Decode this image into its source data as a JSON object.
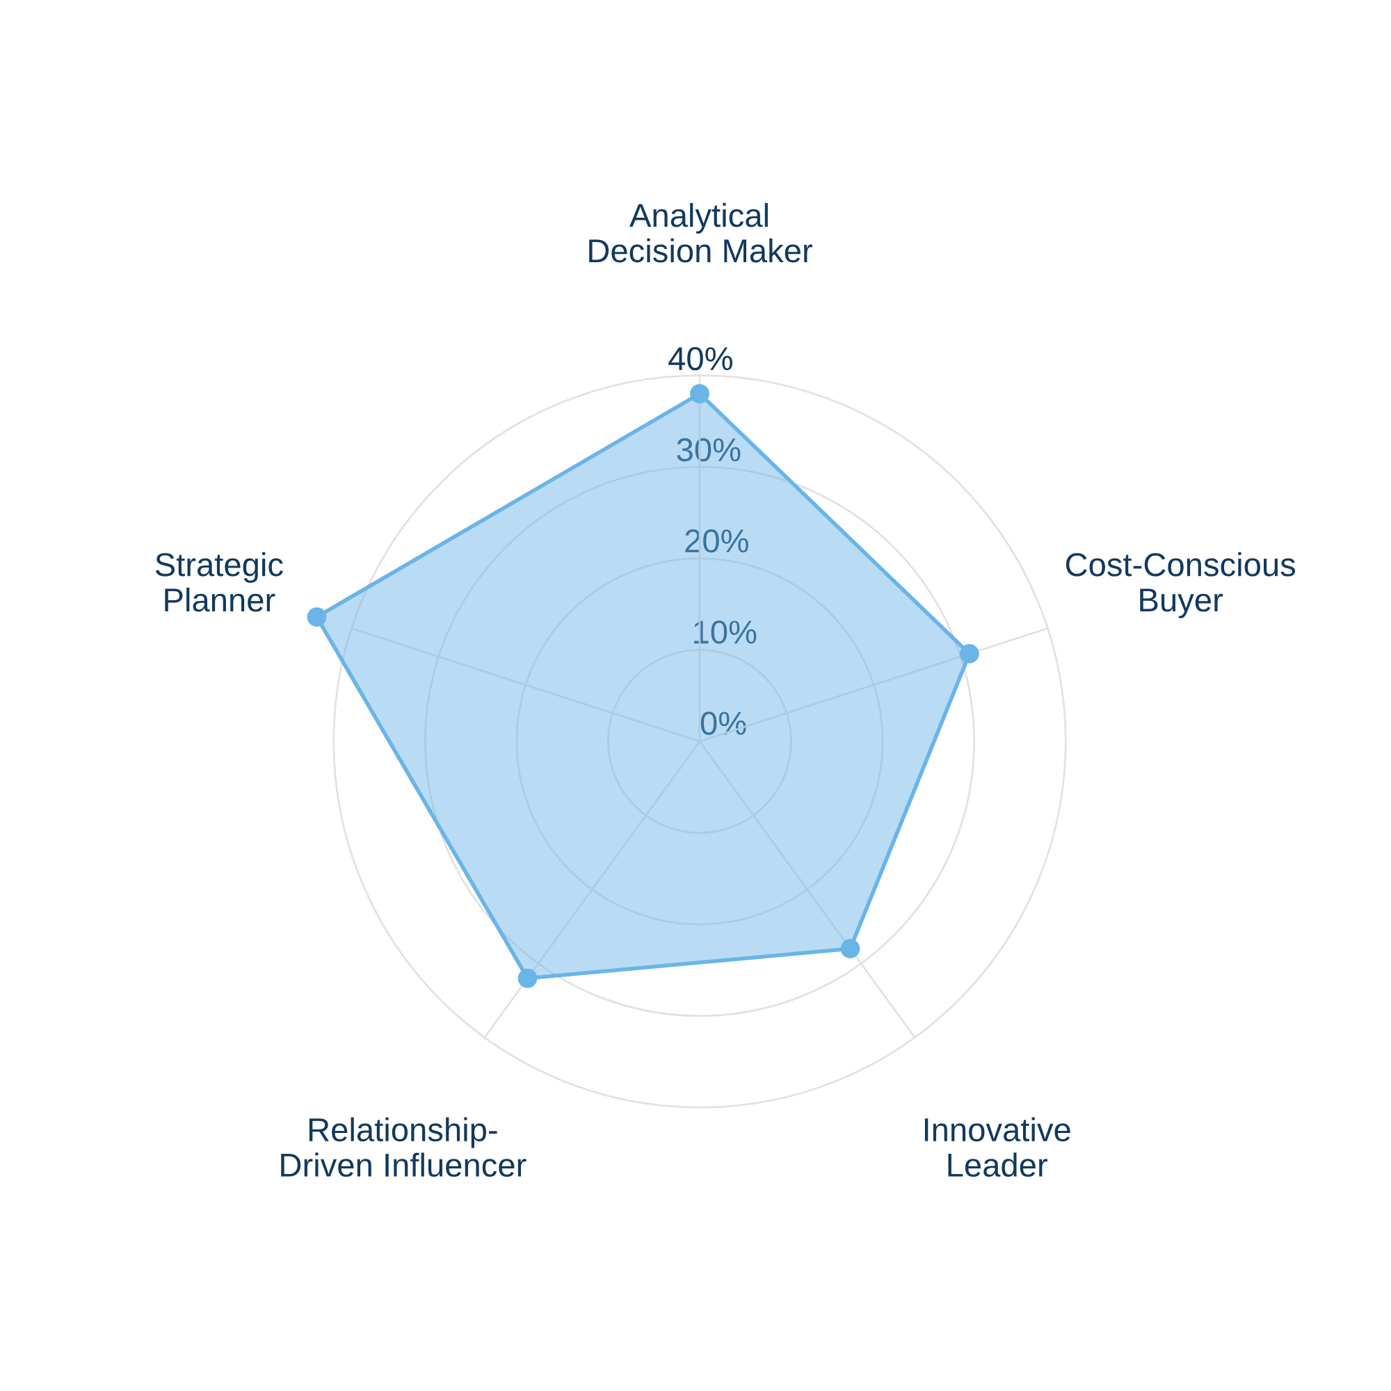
{
  "chart_data": {
    "type": "radar",
    "categories": [
      "Analytical\nDecision Maker",
      "Cost-Conscious\nBuyer",
      "Innovative\nLeader",
      "Relationship-\nDriven Influencer",
      "Strategic\nPlanner"
    ],
    "series": [
      {
        "color": "#6ab4e8",
        "values": [
          38,
          31,
          28,
          32,
          44
        ]
      }
    ],
    "ylim": [
      0,
      45
    ],
    "yticks": [
      {
        "value": 0,
        "label": "0%"
      },
      {
        "value": 10,
        "label": "10%"
      },
      {
        "value": 20,
        "label": "20%"
      },
      {
        "value": 30,
        "label": "30%"
      },
      {
        "value": 40,
        "label": "40%"
      }
    ],
    "grid": true,
    "marker": "circle"
  }
}
